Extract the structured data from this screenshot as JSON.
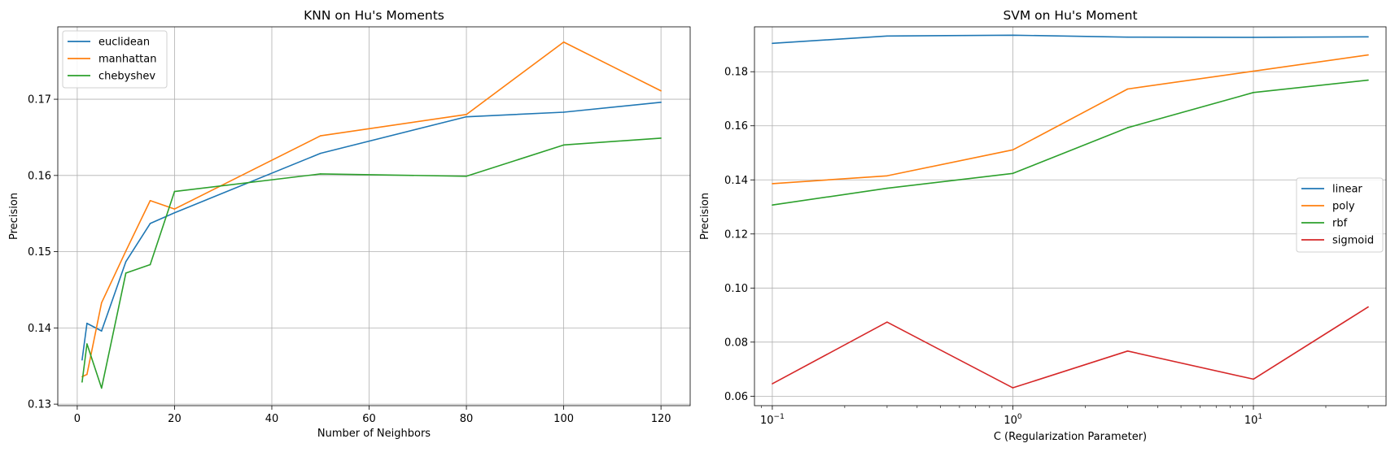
{
  "colors": {
    "blue": "#1f77b4",
    "orange": "#ff7f0e",
    "green": "#2ca02c",
    "red": "#d62728"
  },
  "chart_data": [
    {
      "type": "line",
      "title": "KNN on Hu's Moments",
      "xlabel": "Number of Neighbors",
      "ylabel": "Precision",
      "xlim": [
        -4,
        126
      ],
      "ylim": [
        0.1298,
        0.1795
      ],
      "xticks": [
        0,
        20,
        40,
        60,
        80,
        100,
        120
      ],
      "xtick_labels": [
        "0",
        "20",
        "40",
        "60",
        "80",
        "100",
        "120"
      ],
      "yticks": [
        0.13,
        0.14,
        0.15,
        0.16,
        0.17
      ],
      "ytick_labels": [
        "0.13",
        "0.14",
        "0.15",
        "0.16",
        "0.17"
      ],
      "grid": true,
      "legend": "upper-left",
      "x": [
        1,
        2,
        5,
        10,
        15,
        20,
        50,
        80,
        100,
        120
      ],
      "series": [
        {
          "name": "euclidean",
          "color": "#1f77b4",
          "values": [
            0.1358,
            0.1406,
            0.1396,
            0.1487,
            0.1537,
            0.1551,
            0.1629,
            0.1677,
            0.1683,
            0.1696
          ]
        },
        {
          "name": "manhattan",
          "color": "#ff7f0e",
          "values": [
            0.1336,
            0.1339,
            0.1433,
            0.1501,
            0.1567,
            0.1556,
            0.1652,
            0.168,
            0.1775,
            0.1711
          ]
        },
        {
          "name": "chebyshev",
          "color": "#2ca02c",
          "values": [
            0.1329,
            0.1379,
            0.1321,
            0.1472,
            0.1483,
            0.1579,
            0.1602,
            0.1599,
            0.164,
            0.1649
          ]
        }
      ]
    },
    {
      "type": "line",
      "title": "SVM on Hu's Moment",
      "xlabel": "C (Regularization Parameter)",
      "ylabel": "Precision",
      "xscale": "log",
      "xlim": [
        0.0843,
        35.6
      ],
      "ylim": [
        0.0565,
        0.1966
      ],
      "xticks": [
        0.1,
        1,
        10
      ],
      "xtick_labels": [
        [
          "10",
          "−1"
        ],
        [
          "10",
          "0"
        ],
        [
          "10",
          "1"
        ]
      ],
      "yticks": [
        0.06,
        0.08,
        0.1,
        0.12,
        0.14,
        0.16,
        0.18
      ],
      "ytick_labels": [
        "0.06",
        "0.08",
        "0.10",
        "0.12",
        "0.14",
        "0.16",
        "0.18"
      ],
      "grid": true,
      "legend": "center-right",
      "x": [
        0.1,
        0.3,
        1,
        3,
        10,
        30
      ],
      "series": [
        {
          "name": "linear",
          "color": "#1f77b4",
          "values": [
            0.1905,
            0.1932,
            0.1935,
            0.1928,
            0.1927,
            0.1929
          ]
        },
        {
          "name": "poly",
          "color": "#ff7f0e",
          "values": [
            0.1386,
            0.1415,
            0.1511,
            0.1736,
            0.1802,
            0.1862
          ]
        },
        {
          "name": "rbf",
          "color": "#2ca02c",
          "values": [
            0.1307,
            0.1369,
            0.1424,
            0.1593,
            0.1723,
            0.1769
          ]
        },
        {
          "name": "sigmoid",
          "color": "#d62728",
          "values": [
            0.0646,
            0.0874,
            0.0631,
            0.0767,
            0.0663,
            0.093
          ]
        }
      ]
    }
  ]
}
